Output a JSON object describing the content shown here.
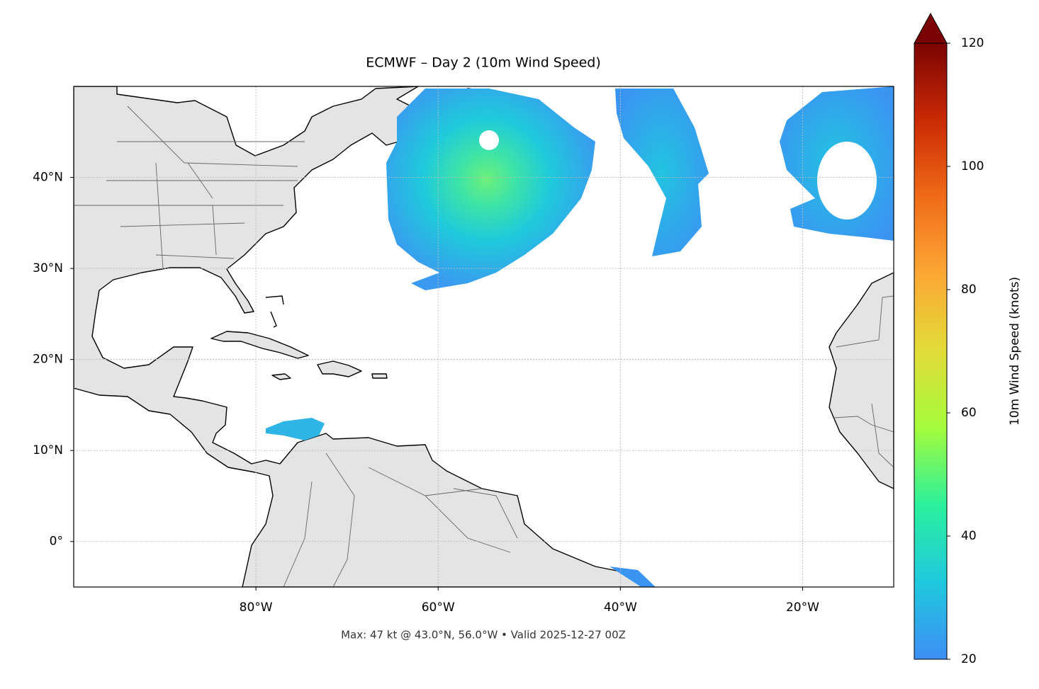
{
  "chart_data": {
    "type": "map",
    "title": "ECMWF – Day 2 (10m Wind Speed)",
    "footnote": "Max: 47 kt @ 43.0°N, 56.0°W • Valid 2025-12-27 00Z",
    "xlim": [
      -100,
      -10
    ],
    "ylim": [
      -5,
      50
    ],
    "xticks": [
      {
        "value": -80,
        "label": "80°W"
      },
      {
        "value": -60,
        "label": "60°W"
      },
      {
        "value": -40,
        "label": "40°W"
      },
      {
        "value": -20,
        "label": "20°W"
      }
    ],
    "yticks": [
      {
        "value": 0,
        "label": "0°"
      },
      {
        "value": 10,
        "label": "10°N"
      },
      {
        "value": 20,
        "label": "20°N"
      },
      {
        "value": 30,
        "label": "30°N"
      },
      {
        "value": 40,
        "label": "40°N"
      }
    ],
    "grid": true,
    "colorbar": {
      "label": "10m Wind Speed (knots)",
      "lim": [
        20,
        120
      ],
      "ticks": [
        20,
        40,
        60,
        80,
        100,
        120
      ],
      "extend": "max",
      "colormap": [
        "#3e8ef5",
        "#1fc9dd",
        "#2bf09c",
        "#a4fc3c",
        "#e2dc38",
        "#fca835",
        "#f06b18",
        "#ca2a04",
        "#7a0403"
      ]
    }
  }
}
